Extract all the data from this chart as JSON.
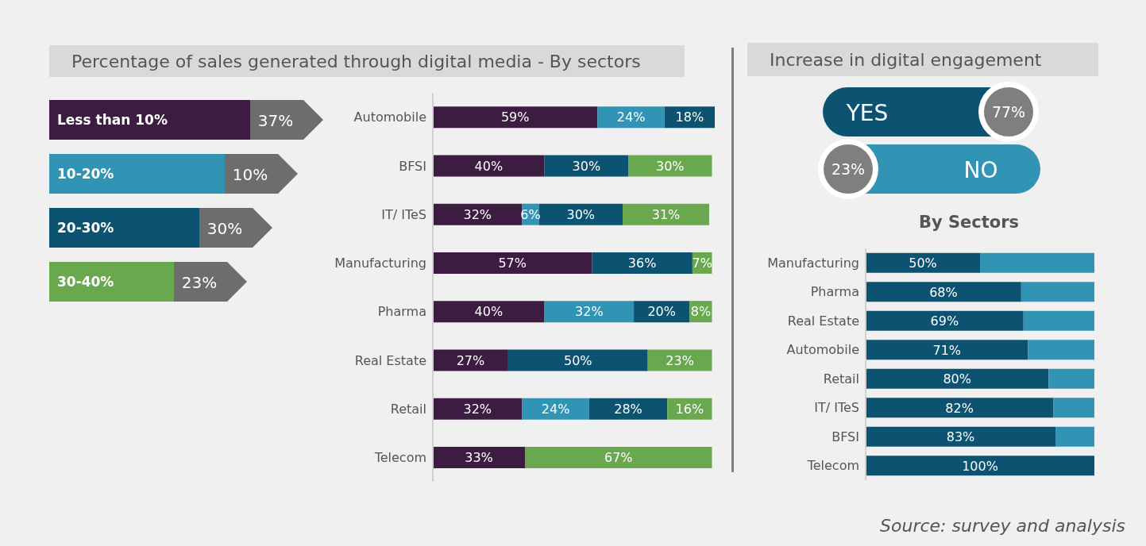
{
  "chart_data": [
    {
      "type": "other",
      "title": "Percentage of sales generated through digital media - By sectors",
      "categories": [
        "Less than 10%",
        "10-20%",
        "20-30%",
        "30-40%"
      ],
      "values": [
        37,
        10,
        30,
        23
      ],
      "value_labels": [
        "37%",
        "10%",
        "30%",
        "23%"
      ]
    },
    {
      "type": "bar",
      "orientation": "horizontal",
      "stacked": true,
      "categories": [
        "Automobile",
        "BFSI",
        "IT/ ITeS",
        "Manufacturing",
        "Pharma",
        "Real Estate",
        "Retail",
        "Telecom"
      ],
      "series": [
        {
          "color": "#3d1c42",
          "values": [
            59,
            40,
            32,
            57,
            40,
            27,
            32,
            33
          ],
          "value_labels": [
            "59%",
            "40%",
            "32%",
            "57%",
            "40%",
            "27%",
            "32%",
            "33%"
          ]
        },
        {
          "color": "#3294b4",
          "values": [
            24,
            null,
            6,
            null,
            32,
            null,
            24,
            null
          ],
          "value_labels": [
            "24%",
            null,
            "6%",
            null,
            "32%",
            null,
            "24%",
            null
          ]
        },
        {
          "color": "#0c5372",
          "values": [
            18,
            30,
            30,
            36,
            20,
            50,
            28,
            null
          ],
          "value_labels": [
            "18%",
            "30%",
            "30%",
            "36%",
            "20%",
            "50%",
            "28%",
            null
          ]
        },
        {
          "color": "#6aa84f",
          "values": [
            null,
            30,
            31,
            7,
            8,
            23,
            16,
            67
          ],
          "value_labels": [
            null,
            "30%",
            "31%",
            "7%",
            "8%",
            "23%",
            "16%",
            "67%"
          ]
        }
      ]
    },
    {
      "type": "other",
      "title": "Increase in digital engagement",
      "categories": [
        "YES",
        "NO"
      ],
      "values": [
        77,
        23
      ],
      "value_labels": [
        "77%",
        "23%"
      ]
    },
    {
      "type": "bar",
      "orientation": "horizontal",
      "stacked": true,
      "title": "By Sectors",
      "categories": [
        "Manufacturing",
        "Pharma",
        "Real Estate",
        "Automobile",
        "Retail",
        "IT/ ITeS",
        "BFSI",
        "Telecom"
      ],
      "series": [
        {
          "color": "#0c5372",
          "values": [
            50,
            68,
            69,
            71,
            80,
            82,
            83,
            100
          ],
          "value_labels": [
            "50%",
            "68%",
            "69%",
            "71%",
            "80%",
            "82%",
            "83%",
            "100%"
          ]
        },
        {
          "color": "#3294b4",
          "values": [
            50,
            32,
            31,
            29,
            20,
            18,
            17,
            0
          ]
        }
      ],
      "annotations": [
        "Source: survey and analysis"
      ]
    }
  ]
}
